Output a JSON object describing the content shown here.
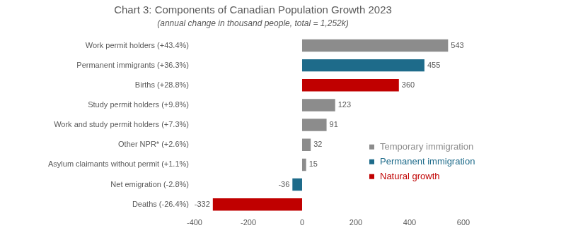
{
  "chart_data": {
    "type": "bar",
    "orientation": "horizontal",
    "title": "Chart 3: Components of Canadian Population Growth 2023",
    "subtitle": "(annual change in thousand people, total = 1,252k)",
    "categories": [
      "Work permit holders (+43.4%)",
      "Permanent immigrants (+36.3%)",
      "Births (+28.8%)",
      "Study permit holders (+9.8%)",
      "Work and study permit holders (+7.3%)",
      "Other NPR* (+2.6%)",
      "Asylum claimants without permit (+1.1%)",
      "Net emigration (-2.8%)",
      "Deaths (-26.4%)"
    ],
    "series": [
      {
        "name": "Temporary immigration",
        "color": "#8c8c8c",
        "values": [
          543,
          null,
          null,
          123,
          91,
          32,
          15,
          null,
          null
        ]
      },
      {
        "name": "Permanent immigration",
        "color": "#1e6b8a",
        "values": [
          null,
          455,
          null,
          null,
          null,
          null,
          null,
          -36,
          null
        ]
      },
      {
        "name": "Natural growth",
        "color": "#c00000",
        "values": [
          null,
          null,
          360,
          null,
          null,
          null,
          null,
          null,
          -332
        ]
      }
    ],
    "xlim": [
      -400,
      600
    ],
    "xticks": [
      -400,
      -200,
      0,
      200,
      400,
      600
    ],
    "grid": false,
    "legend": "lower right",
    "data_labels": true
  }
}
